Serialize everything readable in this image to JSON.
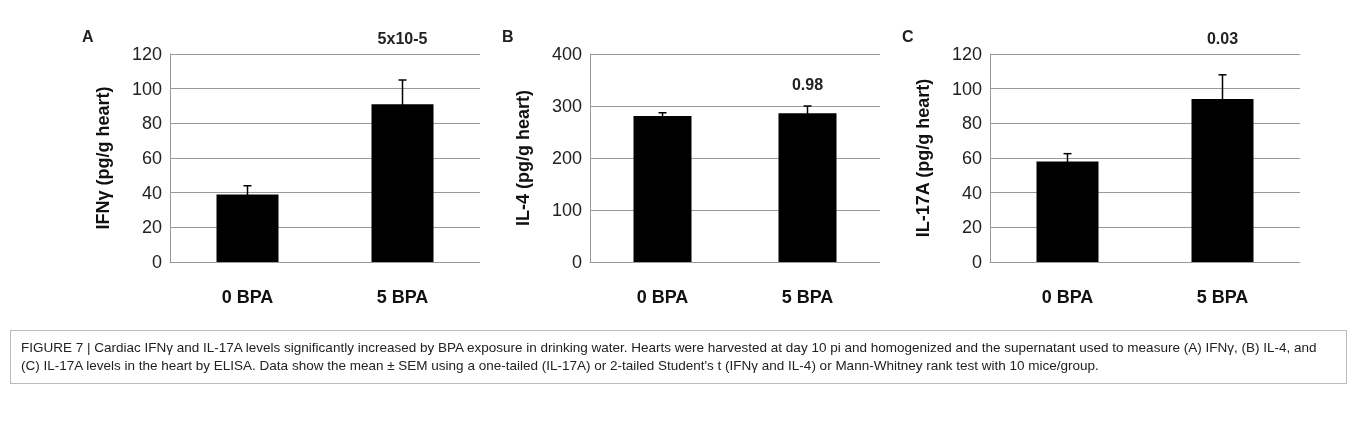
{
  "chart_data": [
    {
      "type": "bar",
      "title": "A",
      "ylabel": "IFNγ (pg/g heart)",
      "categories": [
        "0 BPA",
        "5 BPA"
      ],
      "values": [
        39,
        91
      ],
      "errors": [
        5,
        14
      ],
      "color": "#000000",
      "ylim": [
        0,
        120
      ],
      "yticks": [
        0,
        20,
        40,
        60,
        80,
        100,
        120
      ],
      "grid": "y",
      "annotations": [
        "5x10-5"
      ]
    },
    {
      "type": "bar",
      "title": "B",
      "ylabel": "IL-4 (pg/g heart)",
      "categories": [
        "0 BPA",
        "5 BPA"
      ],
      "values": [
        281,
        286
      ],
      "errors": [
        6,
        14
      ],
      "color": "#000000",
      "ylim": [
        0,
        400
      ],
      "yticks": [
        0,
        100,
        200,
        300,
        400
      ],
      "grid": "y",
      "annotations": [
        "0.98"
      ]
    },
    {
      "type": "bar",
      "title": "C",
      "ylabel": "IL-17A (pg/g heart)",
      "categories": [
        "0 BPA",
        "5 BPA"
      ],
      "values": [
        58,
        94
      ],
      "errors": [
        4.5,
        14
      ],
      "color": "#000000",
      "ylim": [
        0,
        120
      ],
      "yticks": [
        0,
        20,
        40,
        60,
        80,
        100,
        120
      ],
      "grid": "y",
      "annotations": [
        "0.03"
      ]
    },
    {
      "type": "other",
      "annotations": [
        "FIGURE 7 | Cardiac IFNγ and IL-17A levels significantly increased by BPA exposure in drinking water. Hearts were harvested at day 10 pi and homogenized and the supernatant used to measure (A) IFNγ, (B) IL-4, and (C) IL-17A levels in the heart by ELISA. Data show the mean ± SEM using a one-tailed (IL-17A) or 2-tailed Student's t (IFNγ and IL-4) or Mann-Whitney rank test with 10 mice/group."
      ]
    }
  ]
}
